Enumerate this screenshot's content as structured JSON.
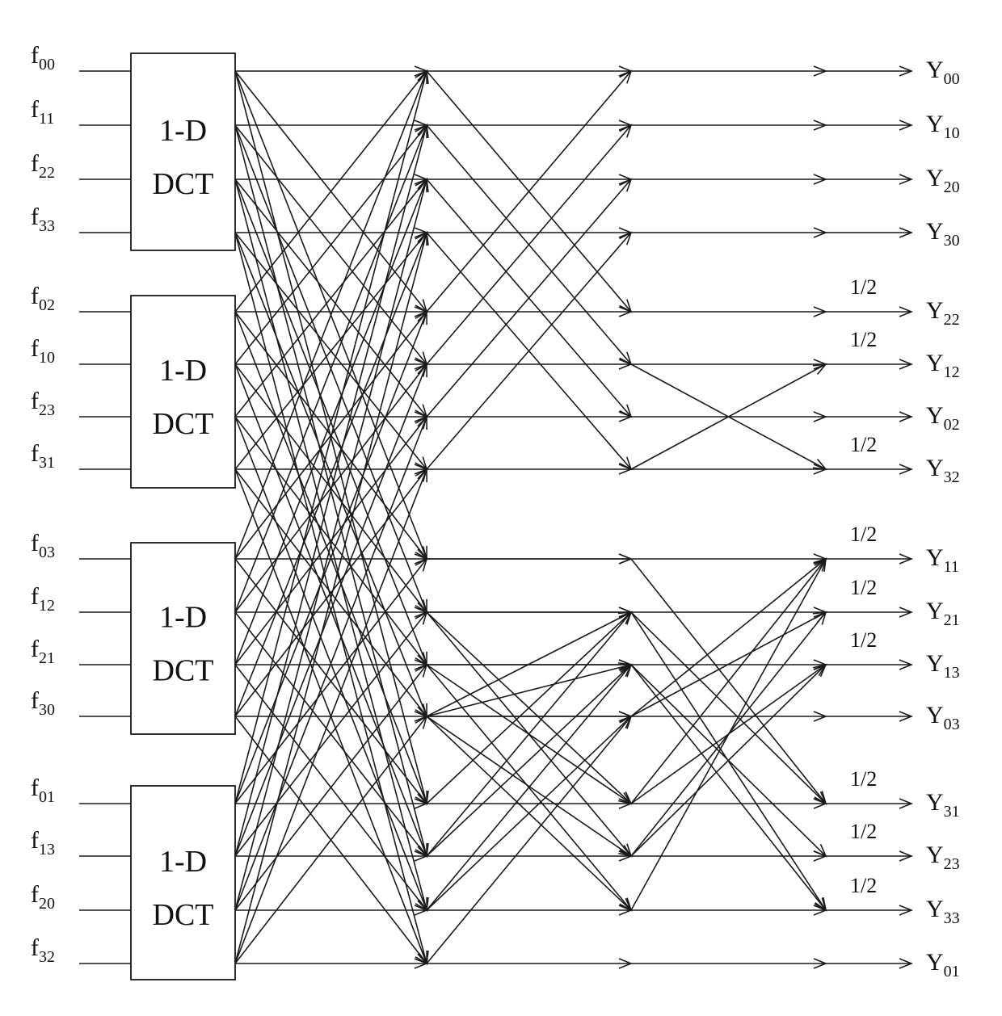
{
  "inputs": [
    {
      "base": "f",
      "sub": "00"
    },
    {
      "base": "f",
      "sub": "11"
    },
    {
      "base": "f",
      "sub": "22"
    },
    {
      "base": "f",
      "sub": "33"
    },
    {
      "base": "f",
      "sub": "02"
    },
    {
      "base": "f",
      "sub": "10"
    },
    {
      "base": "f",
      "sub": "23"
    },
    {
      "base": "f",
      "sub": "31"
    },
    {
      "base": "f",
      "sub": "03"
    },
    {
      "base": "f",
      "sub": "12"
    },
    {
      "base": "f",
      "sub": "21"
    },
    {
      "base": "f",
      "sub": "30"
    },
    {
      "base": "f",
      "sub": "01"
    },
    {
      "base": "f",
      "sub": "13"
    },
    {
      "base": "f",
      "sub": "20"
    },
    {
      "base": "f",
      "sub": "32"
    }
  ],
  "outputs": [
    {
      "base": "Y",
      "sub": "00"
    },
    {
      "base": "Y",
      "sub": "10"
    },
    {
      "base": "Y",
      "sub": "20"
    },
    {
      "base": "Y",
      "sub": "30"
    },
    {
      "base": "Y",
      "sub": "22"
    },
    {
      "base": "Y",
      "sub": "12"
    },
    {
      "base": "Y",
      "sub": "02"
    },
    {
      "base": "Y",
      "sub": "32"
    },
    {
      "base": "Y",
      "sub": "11"
    },
    {
      "base": "Y",
      "sub": "21"
    },
    {
      "base": "Y",
      "sub": "13"
    },
    {
      "base": "Y",
      "sub": "03"
    },
    {
      "base": "Y",
      "sub": "31"
    },
    {
      "base": "Y",
      "sub": "23"
    },
    {
      "base": "Y",
      "sub": "33"
    },
    {
      "base": "Y",
      "sub": "01"
    }
  ],
  "blocks": [
    {
      "line1": "1-D",
      "line2": "DCT"
    },
    {
      "line1": "1-D",
      "line2": "DCT"
    },
    {
      "line1": "1-D",
      "line2": "DCT"
    },
    {
      "line1": "1-D",
      "line2": "DCT"
    }
  ],
  "scale_label": "1/2",
  "scaled_outputs": [
    4,
    5,
    7,
    8,
    9,
    10,
    12,
    13,
    14
  ],
  "stroke_color": "#1a1a1a"
}
